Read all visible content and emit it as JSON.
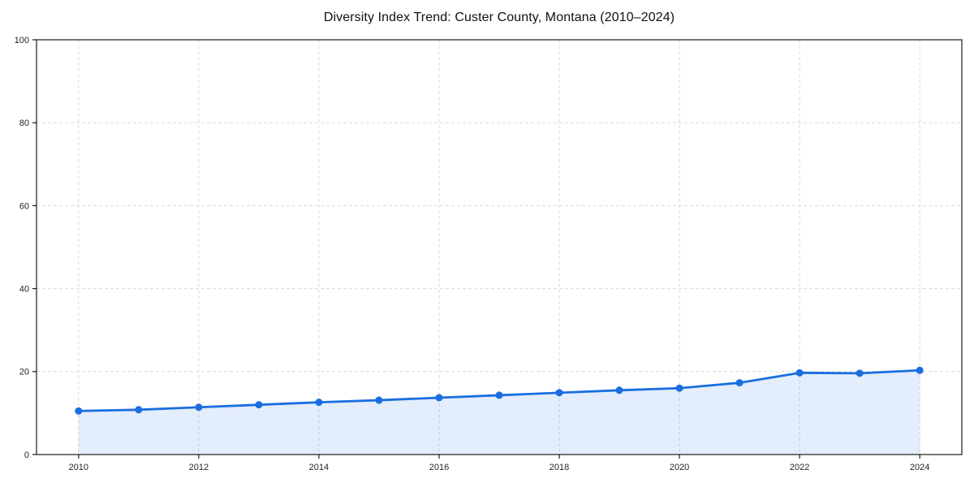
{
  "chart_data": {
    "type": "line",
    "title": "Diversity Index Trend: Custer County, Montana (2010–2024)",
    "x": [
      2010,
      2011,
      2012,
      2013,
      2014,
      2015,
      2016,
      2017,
      2018,
      2019,
      2020,
      2021,
      2022,
      2023,
      2024
    ],
    "series": [
      {
        "name": "Diversity Index",
        "values": [
          10.5,
          10.8,
          11.4,
          12.0,
          12.6,
          13.1,
          13.7,
          14.3,
          14.9,
          15.5,
          16.0,
          17.3,
          19.7,
          19.6,
          20.3
        ]
      }
    ],
    "xlabel": "",
    "ylabel": "",
    "xlim": [
      2009.3,
      2024.7
    ],
    "ylim": [
      0,
      100
    ],
    "x_ticks": [
      2010,
      2012,
      2014,
      2016,
      2018,
      2020,
      2022,
      2024
    ],
    "y_ticks": [
      0,
      20,
      40,
      60,
      80,
      100
    ],
    "grid": "dashed",
    "legend_position": "none",
    "area_fill": true,
    "marker": "circle",
    "colors": {
      "line": "#1a6ee0",
      "marker": "#1a6ee0",
      "area": "#1a6ee0",
      "area_opacity": "0.12",
      "grid": "#dadada",
      "spine": "#1a1a1a",
      "tick_label": "#262626",
      "title": "#111111",
      "background": "#ffffff"
    }
  }
}
